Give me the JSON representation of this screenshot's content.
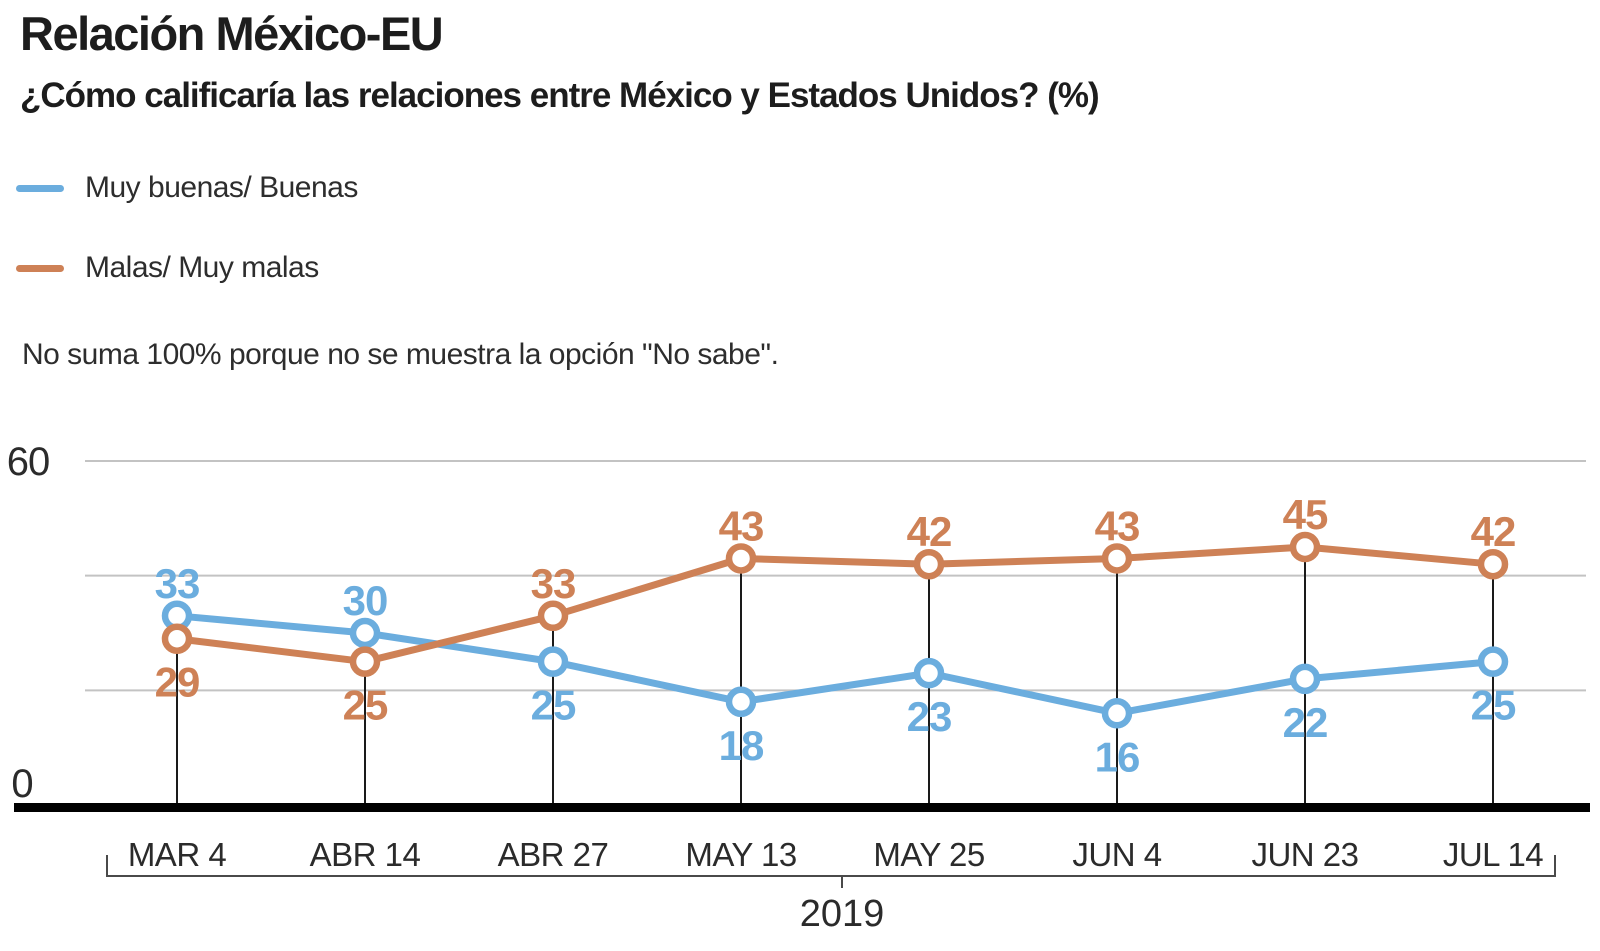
{
  "header": {
    "title": "Relación México-EU",
    "subtitle": "¿Cómo calificaría las relaciones entre México y Estados Unidos? (%)",
    "note": "No suma 100% porque no se muestra la opción \"No sabe\"."
  },
  "colors": {
    "series_blue": "#6BADDE",
    "series_orange": "#CE8156",
    "gridline": "#C3C3C3",
    "axis_line": "#000000",
    "dropline": "#1A1A1A",
    "bracket": "#4A4A4A",
    "text_dark": "#1D1D1D",
    "text_body": "#2B2B2B"
  },
  "chart_data": {
    "type": "line",
    "x_categories": [
      "MAR 4",
      "ABR 14",
      "ABR 27",
      "MAY 13",
      "MAY 25",
      "JUN 4",
      "JUN 23",
      "JUL 14"
    ],
    "x_axis_group_label": "2019",
    "series": [
      {
        "name": "Muy buenas/ Buenas",
        "color": "#6BADDE",
        "values": [
          33,
          30,
          25,
          18,
          23,
          16,
          22,
          25
        ]
      },
      {
        "name": "Malas/ Muy malas",
        "color": "#CE8156",
        "values": [
          29,
          25,
          33,
          43,
          42,
          43,
          45,
          42
        ]
      }
    ],
    "ylim": [
      0,
      60
    ],
    "y_tick_labels": [
      {
        "label": "60",
        "value": 60
      },
      {
        "label": "0",
        "value": 0
      }
    ],
    "gridline_values": [
      20,
      40,
      60
    ],
    "grid": true,
    "legend_position": "top-left",
    "point_labels_shown": true
  }
}
